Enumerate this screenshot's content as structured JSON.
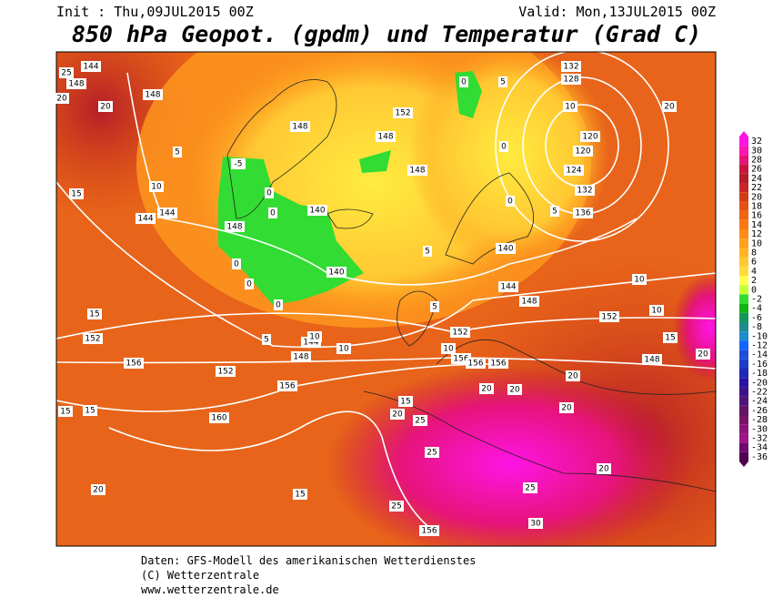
{
  "header": {
    "init": "Init : Thu,09JUL2015 00Z",
    "valid": "Valid: Mon,13JUL2015 00Z",
    "title": "850 hPa Geopot. (gpdm) und Temperatur (Grad C)"
  },
  "colorbar": {
    "labels": [
      "32",
      "30",
      "28",
      "26",
      "24",
      "22",
      "20",
      "18",
      "16",
      "14",
      "12",
      "10",
      "8",
      "6",
      "4",
      "2",
      "0",
      "-2",
      "-4",
      "-6",
      "-8",
      "-10",
      "-12",
      "-14",
      "-16",
      "-18",
      "-20",
      "-22",
      "-24",
      "-26",
      "-28",
      "-30",
      "-32",
      "-34",
      "-36"
    ],
    "colors": [
      "#ff14e6",
      "#ff14b4",
      "#e6147a",
      "#c8143c",
      "#b41e28",
      "#c82828",
      "#d23c14",
      "#e65014",
      "#f06414",
      "#fa7814",
      "#ff8c14",
      "#ffa01e",
      "#ffb428",
      "#ffc832",
      "#ffdc3c",
      "#ffff50",
      "#c8ff32",
      "#32dc32",
      "#14b414",
      "#14965a",
      "#1e8c8c",
      "#1e8cc8",
      "#1464ff",
      "#1e50dc",
      "#1e3cc8",
      "#1e28b4",
      "#2814a0",
      "#3c148c",
      "#501478",
      "#641464",
      "#781464",
      "#8c1478",
      "#a0148c",
      "#6e0a6e",
      "#500050"
    ]
  },
  "map": {
    "contour_labels": [
      "144",
      "148",
      "20",
      "25",
      "20",
      "148",
      "5",
      "10",
      "15",
      "144",
      "144",
      "148",
      "0",
      "0",
      "140",
      "140",
      "0",
      "148",
      "148",
      "152",
      "148",
      "136",
      "132",
      "124",
      "120",
      "120",
      "10",
      "128",
      "132",
      "140",
      "144",
      "148",
      "152",
      "10",
      "10",
      "15",
      "148",
      "20",
      "20",
      "152",
      "156",
      "156",
      "156",
      "20",
      "20",
      "20",
      "20",
      "15",
      "20",
      "25",
      "25",
      "20",
      "25",
      "30",
      "25",
      "156",
      "15",
      "20",
      "160",
      "156",
      "152",
      "156",
      "152",
      "15",
      "15",
      "15",
      "148",
      "144",
      "10",
      "10",
      "5",
      "10",
      "5",
      "5",
      "-5",
      "0",
      "0",
      "5",
      "0",
      "0",
      "5",
      "0"
    ]
  },
  "footer": {
    "line1": "Daten: GFS-Modell des amerikanischen Wetterdienstes",
    "line2": "(C) Wetterzentrale",
    "line3": "www.wetterzentrale.de"
  }
}
